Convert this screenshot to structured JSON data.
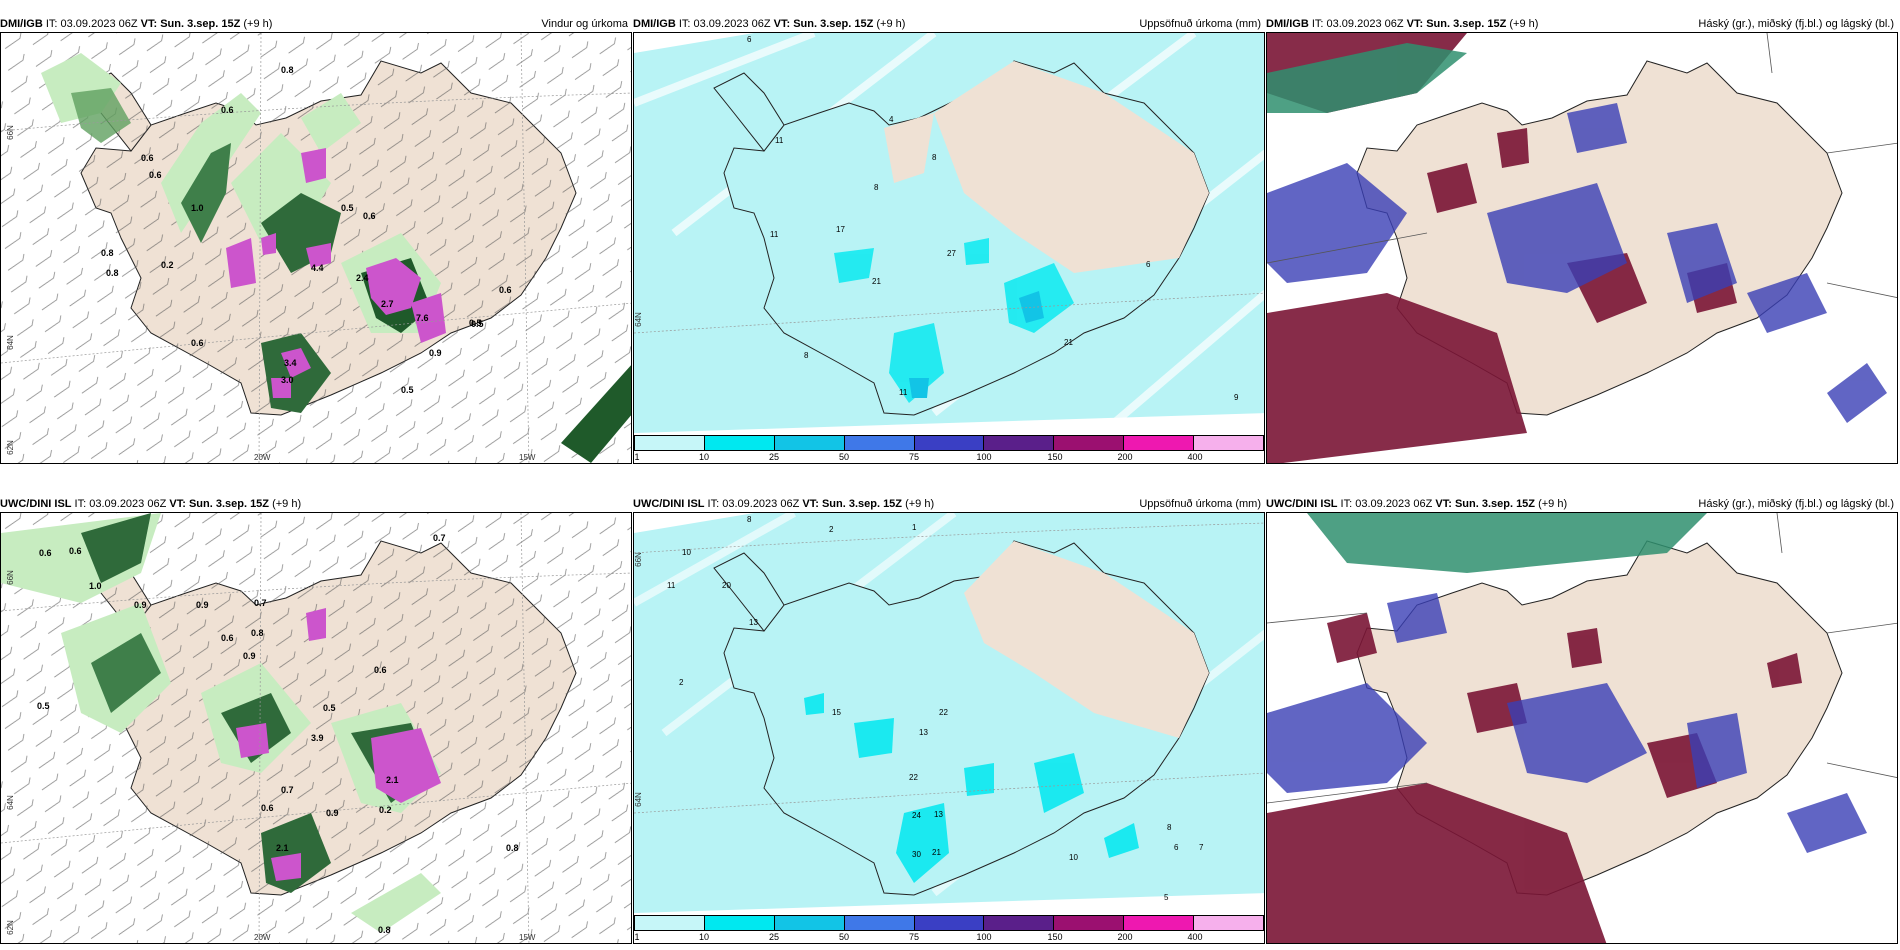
{
  "panels": [
    {
      "org": "DMI/IGB",
      "it_prefix": " IT: ",
      "it": "03.09.2023 06Z",
      "vt_prefix": " VT: ",
      "vt": "Sun. 3.sep. 15Z",
      "lead": " (+9 h)",
      "title": "Vindur og úrkoma",
      "axis": {
        "lat1": "66N",
        "lat2": "64N",
        "lat3": "62N",
        "lon1": "20W",
        "lon2": "15W"
      },
      "labels": [
        "0.8",
        "0.6",
        "0.6",
        "1.0",
        "0.8",
        "0.8",
        "0.6",
        "0.2",
        "0.6",
        "0.5",
        "0.6",
        "0.5",
        "0.5",
        "2.7",
        "7.6",
        "2.4",
        "4.4",
        "0.9",
        "3.4",
        "3.0",
        "0.6",
        "0.5"
      ]
    },
    {
      "org": "DMI/IGB",
      "it_prefix": " IT: ",
      "it": "03.09.2023 06Z",
      "vt_prefix": " VT: ",
      "vt": "Sun. 3.sep. 15Z",
      "lead": " (+9 h)",
      "title": "Uppsöfnuð úrkoma (mm)",
      "axis": {
        "lat": "64N"
      },
      "labels": [
        "6",
        "4",
        "11",
        "8",
        "8",
        "17",
        "11",
        "27",
        "21",
        "6",
        "8",
        "21",
        "9",
        "11"
      ]
    },
    {
      "org": "DMI/IGB",
      "it_prefix": " IT: ",
      "it": "03.09.2023 06Z",
      "vt_prefix": " VT: ",
      "vt": "Sun. 3.sep. 15Z",
      "lead": " (+9 h)",
      "title": "Háský (gr.), miðský (fj.bl.) og lágský (bl.)"
    },
    {
      "org": "UWC/DINI ISL",
      "it_prefix": " IT: ",
      "it": "03.09.2023 06Z",
      "vt_prefix": " VT: ",
      "vt": "Sun. 3.sep. 15Z",
      "lead": " (+9 h)",
      "title": "",
      "axis": {
        "lat1": "66N",
        "lat2": "64N",
        "lat3": "62N",
        "lon1": "20W",
        "lon2": "15W"
      },
      "labels": [
        "0.7",
        "0.6",
        "0.6",
        "1.0",
        "0.9",
        "0.9",
        "0.7",
        "0.5",
        "0.8",
        "0.9",
        "0.6",
        "0.6",
        "0.5",
        "3.9",
        "2.1",
        "0.2",
        "2.1",
        "0.7",
        "0.9",
        "0.6",
        "0.8",
        "0.8"
      ]
    },
    {
      "org": "UWC/DINI ISL",
      "it_prefix": " IT: ",
      "it": "03.09.2023 06Z",
      "vt_prefix": " VT: ",
      "vt": "Sun. 3.sep. 15Z",
      "lead": " (+9 h)",
      "title": "Uppsöfnuð úrkoma (mm)",
      "axis": {
        "lat": "66N",
        "lat2": "64N"
      },
      "labels": [
        "8",
        "2",
        "1",
        "10",
        "11",
        "20",
        "13",
        "2",
        "15",
        "22",
        "13",
        "22",
        "24",
        "13",
        "30",
        "21",
        "10",
        "5",
        "8",
        "7",
        "6"
      ]
    },
    {
      "org": "UWC/DINI ISL",
      "it_prefix": " IT: ",
      "it": "03.09.2023 06Z",
      "vt_prefix": " VT: ",
      "vt": "Sun. 3.sep. 15Z",
      "lead": " (+9 h)",
      "title": "Háský (gr.), miðský (fj.bl.) og lágský (bl.)"
    }
  ],
  "colorbar": {
    "ticks": [
      "1",
      "10",
      "25",
      "50",
      "75",
      "100",
      "150",
      "200",
      "400"
    ],
    "colors": [
      "#c6f6f8",
      "#00e8f0",
      "#12c4e6",
      "#3f78e8",
      "#3a3fc4",
      "#5a1f8a",
      "#9b1070",
      "#ee18b0",
      "#f6b0ec"
    ]
  },
  "colors": {
    "land": "#efe1d4",
    "precip_light": "#b8f3f5",
    "green_light": "#c7ecc0",
    "green_dark": "#1f5a2a",
    "magenta": "#cc55cc",
    "cloud_high": "#2f8f6e",
    "cloud_mid": "#3a3fb5",
    "cloud_low": "#7a1535"
  }
}
